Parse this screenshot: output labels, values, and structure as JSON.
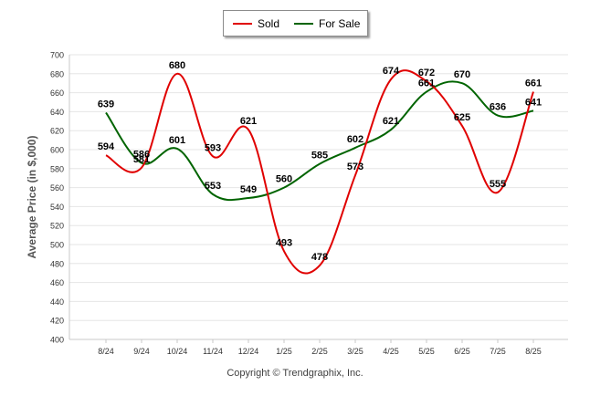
{
  "chart_data": {
    "type": "line",
    "categories": [
      "8/24",
      "9/24",
      "10/24",
      "11/24",
      "12/24",
      "1/25",
      "2/25",
      "3/25",
      "4/25",
      "5/25",
      "6/25",
      "7/25",
      "8/25"
    ],
    "series": [
      {
        "name": "Sold",
        "color": "#e00000",
        "values": [
          594,
          581,
          680,
          593,
          621,
          493,
          478,
          573,
          674,
          672,
          625,
          555,
          661
        ],
        "labels": [
          "594",
          "581",
          "680",
          "593",
          "621",
          "493",
          "478",
          "573",
          "674",
          "672",
          "625",
          "555",
          "661"
        ]
      },
      {
        "name": "For Sale",
        "color": "#006400",
        "values": [
          639,
          586,
          601,
          553,
          549,
          560,
          585,
          602,
          621,
          661,
          670,
          636,
          641
        ],
        "labels": [
          "639",
          "586",
          "601",
          "553",
          "549",
          "560",
          "585",
          "602",
          "621",
          "661",
          "670",
          "636",
          "641"
        ]
      }
    ],
    "ylabel": "Average Price (in $,000)",
    "ylim": [
      400,
      700
    ],
    "yticks": [
      "400",
      "420",
      "440",
      "460",
      "480",
      "500",
      "520",
      "540",
      "560",
      "580",
      "600",
      "620",
      "640",
      "660",
      "680",
      "700"
    ],
    "grid": true,
    "legend_position": "top-center"
  },
  "legend": {
    "sold_label": "Sold",
    "forsale_label": "For Sale"
  },
  "footer": {
    "copyright": "Copyright © Trendgraphix, Inc."
  }
}
